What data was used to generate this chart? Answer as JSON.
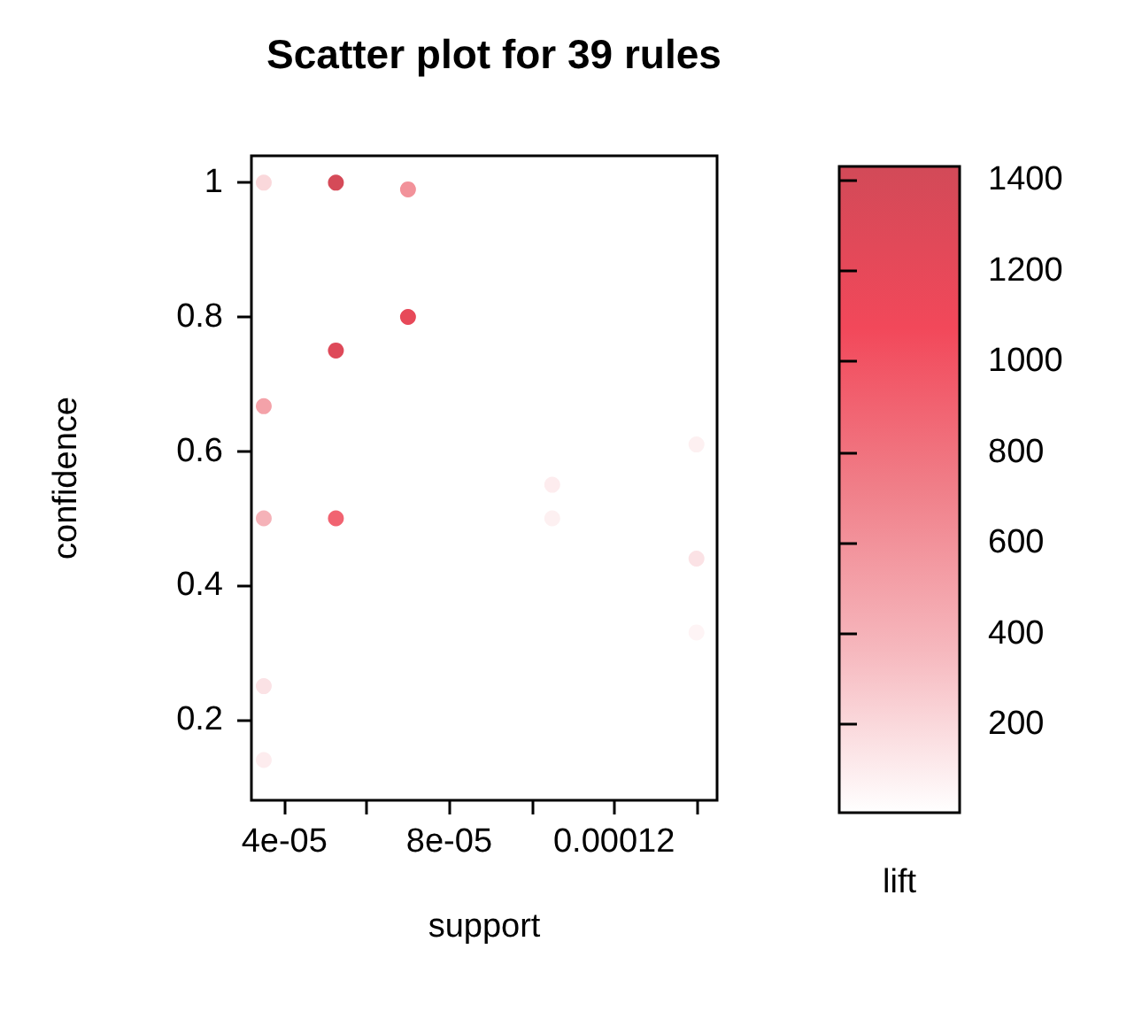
{
  "chart_data": {
    "type": "scatter",
    "title": "Scatter plot for 39 rules",
    "xlabel": "support",
    "ylabel": "confidence",
    "clabel": "lift",
    "x": [
      3.5e-05,
      5.25e-05,
      7e-05,
      7e-05,
      5.25e-05,
      3.5e-05,
      3.5e-05,
      5.25e-05,
      3.5e-05,
      3.5e-05,
      0.00014,
      0.000105,
      0.000105,
      0.00014,
      0.00014
    ],
    "values": [
      1.0,
      1.0,
      0.99,
      0.8,
      0.75,
      0.667,
      0.5,
      0.5,
      0.25,
      0.14,
      0.61,
      0.55,
      0.5,
      0.44,
      0.33
    ],
    "cvalues": [
      200,
      1400,
      600,
      1200,
      1300,
      500,
      400,
      900,
      150,
      100,
      80,
      100,
      80,
      150,
      60
    ],
    "xlim": [
      3.2e-05,
      0.000145
    ],
    "xticks": [
      {
        "value": 4e-05,
        "label": "4e-05"
      },
      {
        "value": 6e-05,
        "label": null
      },
      {
        "value": 8e-05,
        "label": "8e-05"
      },
      {
        "value": 0.0001,
        "label": null
      },
      {
        "value": 0.00012,
        "label": "0.00012"
      },
      {
        "value": 0.00014,
        "label": null
      }
    ],
    "ylim": [
      0.08,
      1.04
    ],
    "yticks": [
      0.2,
      0.4,
      0.6,
      0.8,
      1
    ],
    "clim": [
      5,
      1430
    ],
    "cticks": [
      200,
      400,
      600,
      800,
      1000,
      1200,
      1400
    ],
    "marker": "circle",
    "grid": false
  }
}
